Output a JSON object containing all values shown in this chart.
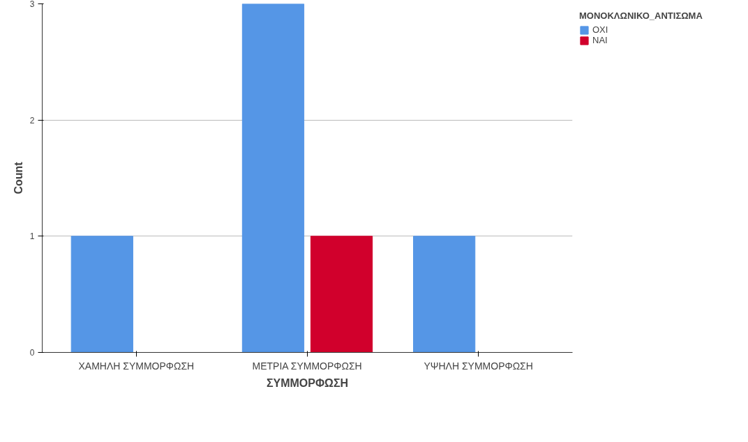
{
  "chart_data": {
    "type": "bar",
    "xlabel": "ΣΥΜΜΟΡΦΩΣΗ",
    "ylabel": "Count",
    "legend_title": "ΜΟΝΟΚΛΩΝΙΚΟ_ΑΝΤΙΣΩΜΑ",
    "categories": [
      "ΧΑΜΗΛΗ ΣΥΜΜΟΡΦΩΣΗ",
      "ΜΕΤΡΙΑ ΣΥΜΜΟΡΦΩΣΗ",
      "ΥΨΗΛΗ ΣΥΜΜΟΡΦΩΣΗ"
    ],
    "series": [
      {
        "name": "ΟΧΙ",
        "color": "#5596e6",
        "values": [
          1,
          3,
          1
        ]
      },
      {
        "name": "ΝΑΙ",
        "color": "#d1002c",
        "values": [
          0,
          1,
          0
        ]
      }
    ],
    "ylim": [
      0,
      3
    ],
    "yticks": [
      0,
      1,
      2,
      3
    ],
    "grid": "y",
    "legend": "top right"
  }
}
